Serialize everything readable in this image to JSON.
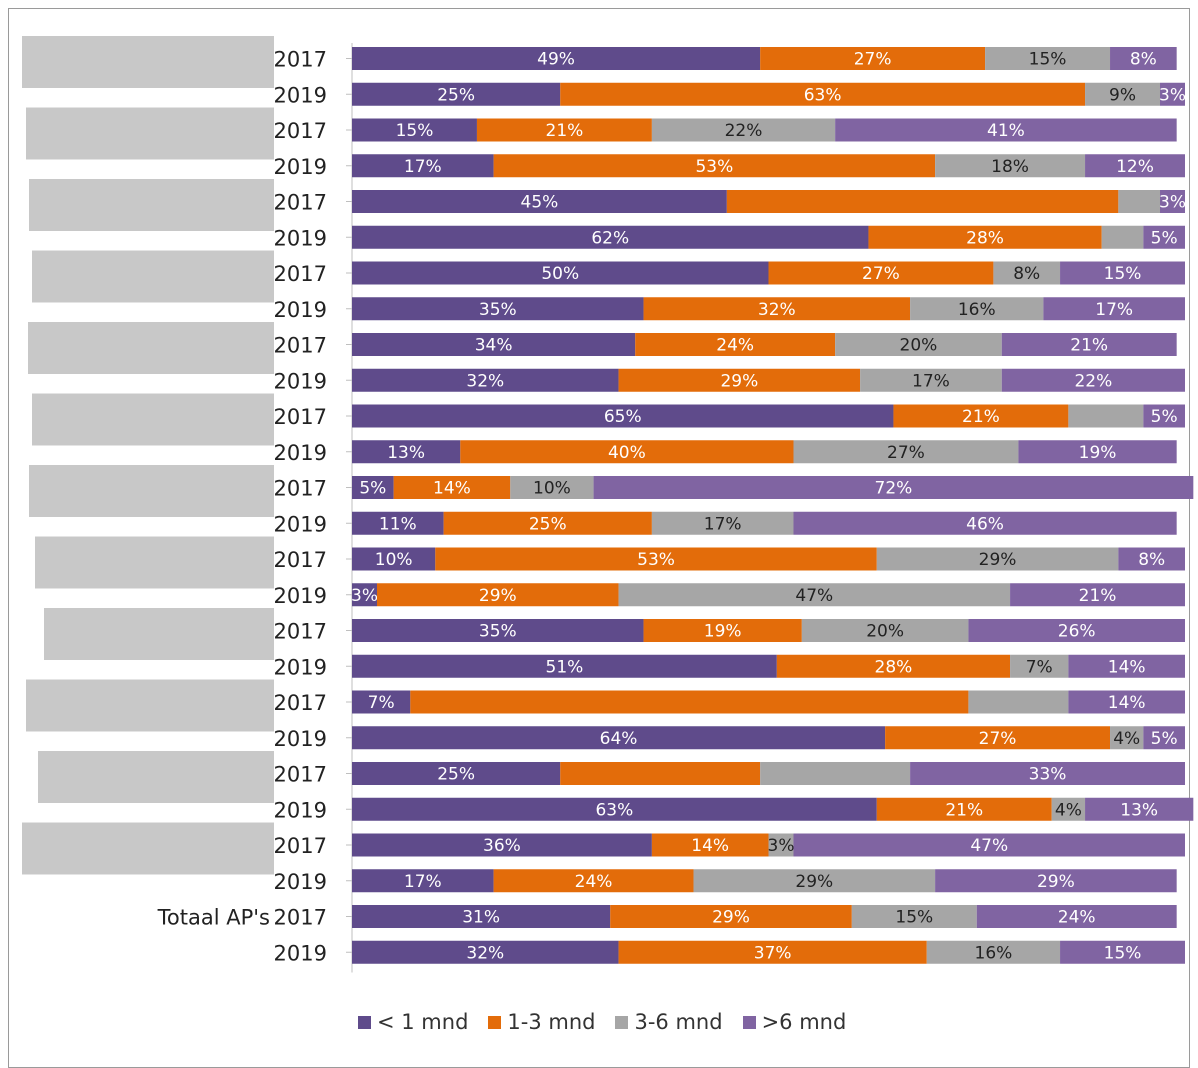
{
  "chart_data": {
    "type": "bar",
    "orientation": "horizontal",
    "stacked": "percent",
    "categories": [
      "2017",
      "2019",
      "2017",
      "2019",
      "2017",
      "2019",
      "2017",
      "2019",
      "2017",
      "2019",
      "2017",
      "2019",
      "2017",
      "2019",
      "2017",
      "2019",
      "2017",
      "2019",
      "2017",
      "2019",
      "2017",
      "2019",
      "2017",
      "2019",
      "2017",
      "2019"
    ],
    "group_labels": [
      "",
      "",
      "",
      "",
      "",
      "",
      "",
      "",
      "",
      "",
      "",
      "",
      "",
      "",
      "",
      "",
      "",
      "",
      "",
      "",
      "",
      "",
      "",
      "",
      "Totaal AP's",
      ""
    ],
    "xlim": [
      0,
      100
    ],
    "grid": false,
    "legend": "bottom",
    "series": [
      {
        "name": "< 1 mnd",
        "color": "#5f4b8b",
        "values": [
          49,
          25,
          15,
          17,
          45,
          62,
          50,
          35,
          34,
          32,
          65,
          13,
          5,
          11,
          10,
          3,
          35,
          51,
          7,
          64,
          25,
          63,
          36,
          17,
          31,
          32
        ],
        "labels": [
          "49%",
          "25%",
          "15%",
          "17%",
          "45%",
          "62%",
          "50%",
          "35%",
          "34%",
          "32%",
          "65%",
          "13%",
          "5%",
          "11%",
          "10%",
          "3%",
          "35%",
          "51%",
          "7%",
          "64%",
          "25%",
          "63%",
          "36%",
          "17%",
          "31%",
          "32%"
        ]
      },
      {
        "name": "1-3 mnd",
        "color": "#e36c0a",
        "values": [
          27,
          63,
          21,
          53,
          47,
          28,
          27,
          32,
          24,
          29,
          21,
          40,
          14,
          25,
          53,
          29,
          19,
          28,
          67,
          27,
          24,
          21,
          14,
          24,
          29,
          37
        ],
        "labels": [
          "27%",
          "63%",
          "21%",
          "53%",
          "",
          "28%",
          "27%",
          "32%",
          "24%",
          "29%",
          "21%",
          "40%",
          "14%",
          "25%",
          "53%",
          "29%",
          "19%",
          "28%",
          "",
          "27%",
          "",
          "21%",
          "14%",
          "24%",
          "29%",
          "37%"
        ]
      },
      {
        "name": "3-6 mnd",
        "color": "#a6a6a6",
        "values": [
          15,
          9,
          22,
          18,
          5,
          5,
          8,
          16,
          20,
          17,
          9,
          27,
          10,
          17,
          29,
          47,
          20,
          7,
          12,
          4,
          18,
          4,
          3,
          29,
          15,
          16
        ],
        "labels": [
          "15%",
          "9%",
          "22%",
          "18%",
          "",
          "",
          "8%",
          "16%",
          "20%",
          "17%",
          "",
          "27%",
          "10%",
          "17%",
          "29%",
          "47%",
          "20%",
          "7%",
          "",
          "4%",
          "",
          "4%",
          "3%",
          "29%",
          "15%",
          "16%"
        ]
      },
      {
        "name": ">6 mnd",
        "color": "#8064a2",
        "values": [
          8,
          3,
          41,
          12,
          3,
          5,
          15,
          17,
          21,
          22,
          5,
          19,
          72,
          46,
          8,
          21,
          26,
          14,
          14,
          5,
          33,
          13,
          47,
          29,
          24,
          15
        ],
        "labels": [
          "8%",
          "3%",
          "41%",
          "12%",
          "3%",
          "5%",
          "15%",
          "17%",
          "21%",
          "22%",
          "5%",
          "19%",
          "72%",
          "46%",
          "8%",
          "21%",
          "26%",
          "14%",
          "14%",
          "5%",
          "33%",
          "13%",
          "47%",
          "29%",
          "24%",
          "15%"
        ]
      }
    ]
  }
}
